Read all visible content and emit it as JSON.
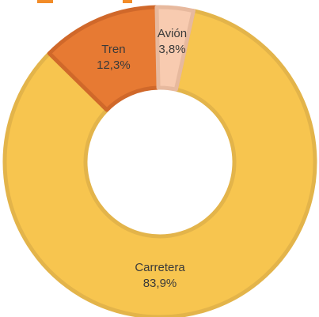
{
  "chart_data": {
    "type": "pie",
    "style": "donut",
    "title": "",
    "categories": [
      "Carretera",
      "Tren",
      "Avión"
    ],
    "values": [
      83.9,
      12.3,
      3.8
    ],
    "value_labels": [
      "83,9%",
      "12,3%",
      "3,8%"
    ],
    "colors": [
      "#f7c54f",
      "#e77a33",
      "#f8cbb0"
    ],
    "stroke_colors": [
      "#e3b44a",
      "#d0682a",
      "#e7b99e"
    ],
    "legend": "none"
  }
}
